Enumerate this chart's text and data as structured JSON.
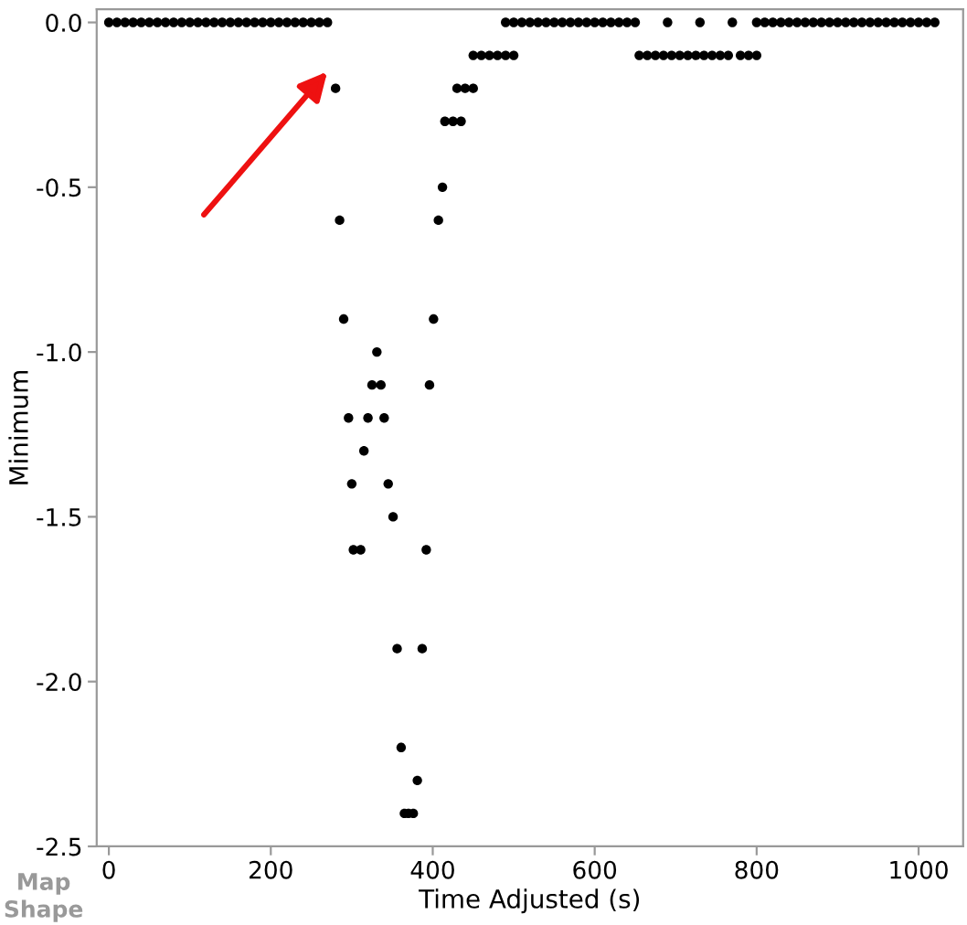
{
  "chart_data": {
    "type": "scatter",
    "xlabel": "Time Adjusted (s)",
    "ylabel": "Minimum",
    "marker": "circle",
    "grid": false,
    "annotations": [
      "Map Shape"
    ],
    "xlim": [
      -15,
      1055
    ],
    "xticks": [
      0,
      200,
      400,
      600,
      800,
      1000
    ],
    "ylim": [
      -2.5,
      0.04
    ],
    "yticks": [
      {
        "value": 0,
        "label": "0.0"
      },
      {
        "value": -0.5,
        "label": "-0.5"
      },
      {
        "value": -1,
        "label": "-1.0"
      },
      {
        "value": -1.5,
        "label": "-1.5"
      },
      {
        "value": -2,
        "label": "-2.0"
      },
      {
        "value": -2.5,
        "label": "-2.5"
      }
    ],
    "series": [
      {
        "color": "#000000",
        "x": [
          0,
          10,
          20,
          30,
          40,
          50,
          60,
          70,
          80,
          90,
          100,
          110,
          120,
          130,
          140,
          150,
          160,
          170,
          180,
          190,
          200,
          210,
          220,
          230,
          240,
          250,
          260,
          270,
          490,
          500,
          510,
          520,
          530,
          540,
          550,
          560,
          570,
          580,
          590,
          600,
          610,
          620,
          630,
          640,
          650,
          690,
          730,
          770,
          800,
          810,
          820,
          830,
          840,
          850,
          860,
          870,
          880,
          890,
          900,
          910,
          920,
          930,
          940,
          950,
          960,
          970,
          980,
          990,
          1000,
          1010,
          1020,
          450,
          460,
          470,
          480,
          490,
          500,
          655,
          665,
          675,
          685,
          695,
          705,
          715,
          725,
          735,
          745,
          755,
          765,
          780,
          790,
          800,
          280,
          430,
          440,
          450,
          415,
          425,
          435,
          412,
          285,
          407,
          290,
          401,
          331,
          325,
          336,
          396,
          296,
          320,
          340,
          315,
          300,
          345,
          351,
          302,
          311,
          392,
          356,
          387,
          361,
          381,
          365,
          370,
          376
        ],
        "values": [
          0,
          0,
          0,
          0,
          0,
          0,
          0,
          0,
          0,
          0,
          0,
          0,
          0,
          0,
          0,
          0,
          0,
          0,
          0,
          0,
          0,
          0,
          0,
          0,
          0,
          0,
          0,
          0,
          0,
          0,
          0,
          0,
          0,
          0,
          0,
          0,
          0,
          0,
          0,
          0,
          0,
          0,
          0,
          0,
          0,
          0,
          0,
          0,
          0,
          0,
          0,
          0,
          0,
          0,
          0,
          0,
          0,
          0,
          0,
          0,
          0,
          0,
          0,
          0,
          0,
          0,
          0,
          0,
          0,
          0,
          0,
          -0.1,
          -0.1,
          -0.1,
          -0.1,
          -0.1,
          -0.1,
          -0.1,
          -0.1,
          -0.1,
          -0.1,
          -0.1,
          -0.1,
          -0.1,
          -0.1,
          -0.1,
          -0.1,
          -0.1,
          -0.1,
          -0.1,
          -0.1,
          -0.1,
          -0.2,
          -0.2,
          -0.2,
          -0.2,
          -0.3,
          -0.3,
          -0.3,
          -0.5,
          -0.6,
          -0.6,
          -0.9,
          -0.9,
          -1.0,
          -1.1,
          -1.1,
          -1.1,
          -1.2,
          -1.2,
          -1.2,
          -1.3,
          -1.4,
          -1.4,
          -1.5,
          -1.6,
          -1.6,
          -1.6,
          -1.9,
          -1.9,
          -2.2,
          -2.3,
          -2.4,
          -2.4,
          -2.4
        ]
      }
    ]
  }
}
